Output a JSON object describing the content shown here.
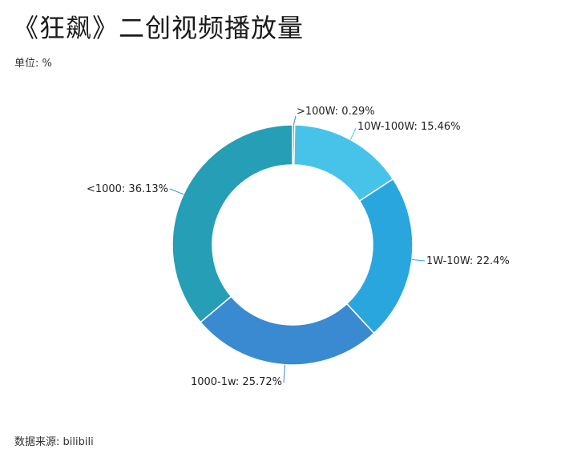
{
  "title": "《狂飙》二创视频播放量",
  "unit_label": "单位: %",
  "source_label": "数据来源: bilibili",
  "chart_data": {
    "type": "pie",
    "variant": "donut",
    "title": "《狂飙》二创视频播放量",
    "unit": "%",
    "categories": [
      ">100W",
      "10W-100W",
      "1W-10W",
      "1000-1w",
      "<1000"
    ],
    "values": [
      0.29,
      15.46,
      22.4,
      25.72,
      36.13
    ],
    "labels": [
      ">100W: 0.29%",
      "10W-100W: 15.46%",
      "1W-10W: 22.4%",
      "1000-1w: 25.72%",
      "<1000: 36.13%"
    ],
    "colors": [
      "#2a97b8",
      "#47c3ea",
      "#2aa6df",
      "#3a8ad1",
      "#259eb6"
    ],
    "legend": "none"
  }
}
